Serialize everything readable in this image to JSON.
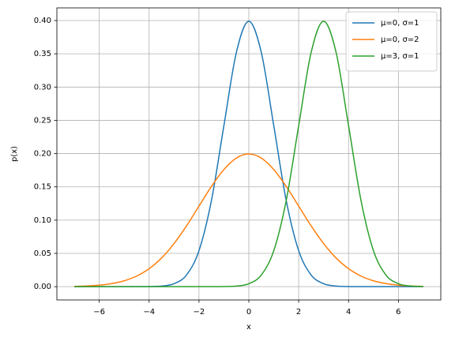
{
  "chart_data": {
    "type": "line",
    "x_label": "x",
    "y_label": "p(x)",
    "x": [
      -7,
      -6.5,
      -6,
      -5.5,
      -5,
      -4.5,
      -4,
      -3.5,
      -3,
      -2.5,
      -2,
      -1.5,
      -1,
      -0.5,
      0,
      0.5,
      1,
      1.5,
      2,
      2.5,
      3,
      3.5,
      4,
      4.5,
      5,
      5.5,
      6,
      6.5,
      7
    ],
    "series": [
      {
        "name": "μ=0, σ=1",
        "color": "#1f77b4",
        "values": [
          0,
          0,
          0,
          0,
          0,
          0,
          0.0001,
          0.0009,
          0.0044,
          0.0175,
          0.054,
          0.1295,
          0.242,
          0.3521,
          0.3989,
          0.3521,
          0.242,
          0.1295,
          0.054,
          0.0175,
          0.0044,
          0.0009,
          0.0001,
          0,
          0,
          0,
          0,
          0,
          0
        ]
      },
      {
        "name": "μ=0, σ=2",
        "color": "#ff7f0e",
        "values": [
          0.0004,
          0.001,
          0.0022,
          0.0046,
          0.0088,
          0.0159,
          0.027,
          0.0431,
          0.0648,
          0.0913,
          0.121,
          0.1506,
          0.176,
          0.1933,
          0.1995,
          0.1933,
          0.176,
          0.1506,
          0.121,
          0.0913,
          0.0648,
          0.0431,
          0.027,
          0.0159,
          0.0088,
          0.0046,
          0.0022,
          0.001,
          0.0004
        ]
      },
      {
        "name": "μ=3, σ=1",
        "color": "#2ca02c",
        "values": [
          0,
          0,
          0,
          0,
          0,
          0,
          0,
          0,
          0,
          0,
          0,
          0,
          0.0001,
          0.0009,
          0.0044,
          0.0175,
          0.054,
          0.1295,
          0.242,
          0.3521,
          0.3989,
          0.3521,
          0.242,
          0.1295,
          0.054,
          0.0175,
          0.0044,
          0.0009,
          0.0001
        ]
      }
    ],
    "xlim": [
      -7.7,
      7.7
    ],
    "xticks": [
      {
        "value": -6,
        "label": "−6"
      },
      {
        "value": -4,
        "label": "−4"
      },
      {
        "value": -2,
        "label": "−2"
      },
      0,
      2,
      4,
      6
    ],
    "ylim": [
      -0.02,
      0.419
    ],
    "yticks": [
      {
        "value": 0,
        "label": "0.00"
      },
      {
        "value": 0.05,
        "label": "0.05"
      },
      {
        "value": 0.1,
        "label": "0.10"
      },
      {
        "value": 0.15,
        "label": "0.15"
      },
      {
        "value": 0.2,
        "label": "0.20"
      },
      {
        "value": 0.25,
        "label": "0.25"
      },
      {
        "value": 0.3,
        "label": "0.30"
      },
      {
        "value": 0.35,
        "label": "0.35"
      },
      {
        "value": 0.4,
        "label": "0.40"
      }
    ],
    "grid": true,
    "legend": "upper right"
  }
}
